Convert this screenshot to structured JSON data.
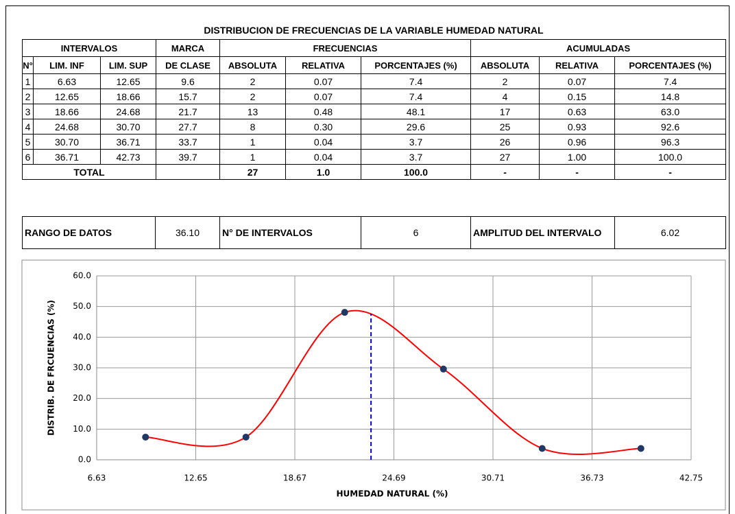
{
  "table": {
    "title": "DISTRIBUCION DE FRECUENCIAS DE LA VARIABLE HUMEDAD NATURAL",
    "header_groups": [
      "INTERVALOS",
      "MARCA",
      "FRECUENCIAS",
      "ACUMULADAS"
    ],
    "header_columns": [
      "N°",
      "LIM. INF",
      "LIM. SUP",
      "DE CLASE",
      "ABSOLUTA",
      "RELATIVA",
      "PORCENTAJES (%)",
      "ABSOLUTA",
      "RELATIVA",
      "PORCENTAJES (%)"
    ],
    "rows": [
      [
        "1",
        "6.63",
        "12.65",
        "9.6",
        "2",
        "0.07",
        "7.4",
        "2",
        "0.07",
        "7.4"
      ],
      [
        "2",
        "12.65",
        "18.66",
        "15.7",
        "2",
        "0.07",
        "7.4",
        "4",
        "0.15",
        "14.8"
      ],
      [
        "3",
        "18.66",
        "24.68",
        "21.7",
        "13",
        "0.48",
        "48.1",
        "17",
        "0.63",
        "63.0"
      ],
      [
        "4",
        "24.68",
        "30.70",
        "27.7",
        "8",
        "0.30",
        "29.6",
        "25",
        "0.93",
        "92.6"
      ],
      [
        "5",
        "30.70",
        "36.71",
        "33.7",
        "1",
        "0.04",
        "3.7",
        "26",
        "0.96",
        "96.3"
      ],
      [
        "6",
        "36.71",
        "42.73",
        "39.7",
        "1",
        "0.04",
        "3.7",
        "27",
        "1.00",
        "100.0"
      ]
    ],
    "total": [
      "TOTAL",
      "27",
      "1.0",
      "100.0",
      "-",
      "-",
      "-"
    ]
  },
  "summary": [
    [
      "RANGO DE DATOS",
      "36.10"
    ],
    [
      "N° DE INTERVALOS",
      "6"
    ],
    [
      "AMPLITUD DEL INTERVALO",
      "6.02"
    ]
  ],
  "chart_data": {
    "type": "line",
    "x": [
      9.6,
      15.7,
      21.7,
      27.7,
      33.7,
      39.7
    ],
    "values": [
      7.4,
      7.4,
      48.1,
      29.6,
      3.7,
      3.7
    ],
    "color": "#ff0000",
    "marker_color": "#1f3864",
    "smooth": true,
    "xlabel": "HUMEDAD  NATURAL (%)",
    "ylabel": "DISTRIB.  DE FRCUENCIAS (%)",
    "xlim": [
      6.63,
      42.75
    ],
    "xticks": [
      6.63,
      12.65,
      18.67,
      24.69,
      30.71,
      36.73,
      42.75
    ],
    "ylim": [
      0,
      60
    ],
    "yticks": [
      {
        "value": 0,
        "label": "0.0"
      },
      {
        "value": 10,
        "label": "10.0"
      },
      {
        "value": 20,
        "label": "20.0"
      },
      {
        "value": 30,
        "label": "30.0"
      },
      {
        "value": 40,
        "label": "40.0"
      },
      {
        "value": 50,
        "label": "50.0"
      },
      {
        "value": 60,
        "label": "60.0"
      }
    ],
    "grid": true,
    "reference_line": {
      "x": 23.3,
      "y": 47.6,
      "color": "#0000cc"
    }
  }
}
